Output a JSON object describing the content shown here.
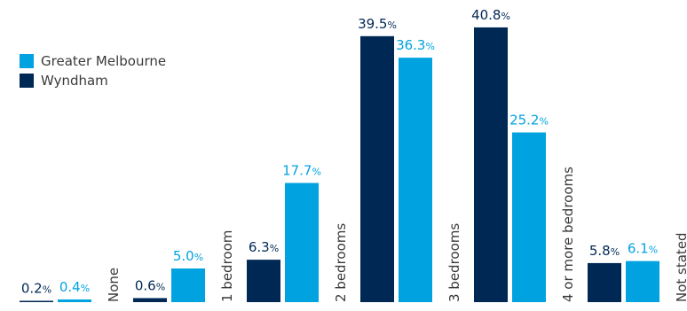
{
  "chart_data": {
    "type": "bar",
    "title": "",
    "xlabel": "",
    "ylabel": "",
    "ylim": [
      0,
      42
    ],
    "grid": false,
    "legend_position": "top-left",
    "categories": [
      "None",
      "1 bedroom",
      "2 bedrooms",
      "3 bedrooms",
      "4 or more bedrooms",
      "Not stated"
    ],
    "series": [
      {
        "name": "Wyndham",
        "color": "#002855",
        "label_color": "#002855",
        "values": [
          0.2,
          0.6,
          6.3,
          39.5,
          40.8,
          5.8
        ],
        "labels": [
          "0.2",
          "0.6",
          "6.3",
          "39.5",
          "40.8",
          "5.8"
        ]
      },
      {
        "name": "Greater Melbourne",
        "color": "#00A3E0",
        "label_color": "#00A3E0",
        "values": [
          0.4,
          5.0,
          17.7,
          36.3,
          25.2,
          6.1
        ],
        "labels": [
          "0.4",
          "5.0",
          "17.7",
          "36.3",
          "25.2",
          "6.1"
        ]
      }
    ],
    "value_suffix": "%"
  },
  "legend": {
    "items": [
      {
        "label": "Greater Melbourne",
        "color": "#00A3E0"
      },
      {
        "label": "Wyndham",
        "color": "#002855"
      }
    ]
  }
}
